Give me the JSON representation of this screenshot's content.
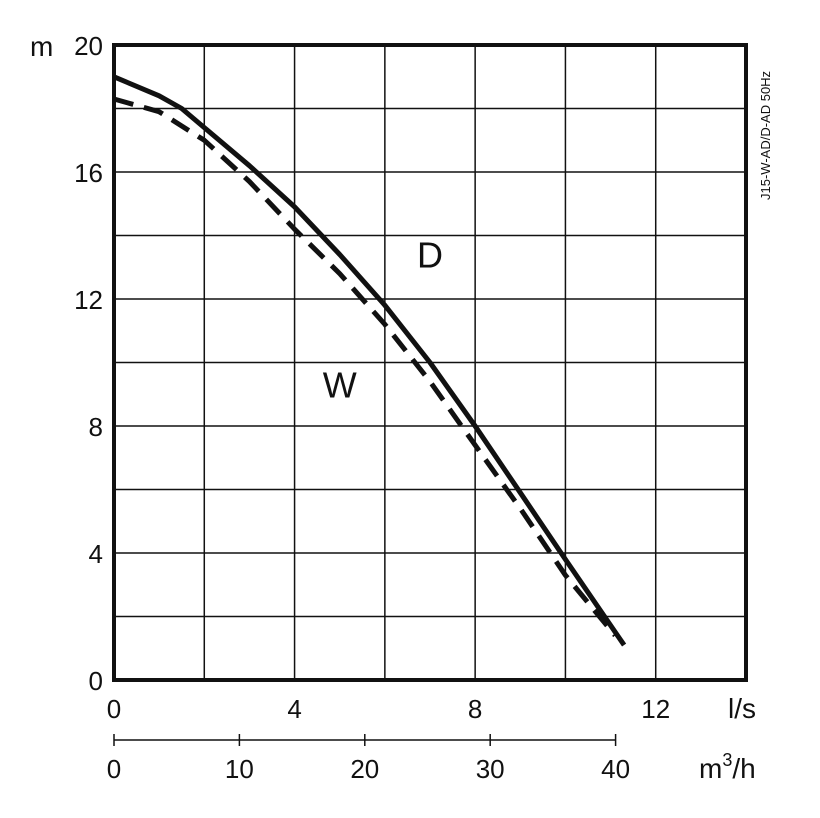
{
  "chart_data": {
    "type": "line",
    "model_label": "J15-W-AD/D-AD 50Hz",
    "y_unit": "m",
    "ylim": [
      0,
      20
    ],
    "y_ticks": [
      0,
      4,
      8,
      12,
      16,
      20
    ],
    "xlim_ls": [
      0,
      14
    ],
    "x_ticks_ls": [
      0,
      4,
      8,
      12
    ],
    "x_unit_ls": "l/s",
    "x2_ticks_m3h": [
      0,
      10,
      20,
      30,
      40
    ],
    "x2_unit_prefix": "m",
    "x2_unit_sup": "3",
    "x2_unit_suffix": "/h",
    "grid": true,
    "series": [
      {
        "name": "D",
        "style": "solid",
        "color": "#111111",
        "x": [
          0,
          1,
          1.5,
          2,
          3,
          4,
          5,
          6,
          7,
          8,
          9,
          10,
          11.3
        ],
        "y": [
          19.0,
          18.4,
          18.0,
          17.4,
          16.2,
          14.9,
          13.4,
          11.8,
          10.0,
          8.0,
          5.9,
          3.8,
          1.1
        ]
      },
      {
        "name": "W",
        "style": "dashed",
        "color": "#111111",
        "x": [
          0,
          1,
          2,
          3,
          4,
          5,
          6,
          7,
          8,
          9,
          10,
          11.1
        ],
        "y": [
          18.3,
          17.9,
          17.0,
          15.7,
          14.2,
          12.8,
          11.2,
          9.4,
          7.4,
          5.4,
          3.3,
          1.4
        ]
      }
    ],
    "annotations": [
      {
        "text": "D",
        "x": 7.0,
        "y": 13.0
      },
      {
        "text": "W",
        "x": 5.0,
        "y": 8.9
      }
    ]
  }
}
